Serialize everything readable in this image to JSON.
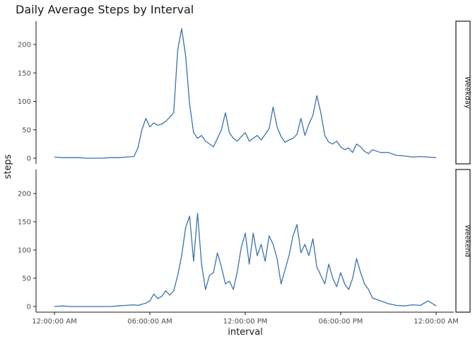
{
  "chart_data": {
    "type": "line",
    "title": "Daily Average Steps by Interval",
    "xlabel": "interval",
    "ylabel": "steps",
    "ylim": [
      0,
      240
    ],
    "yticks": [
      0,
      50,
      100,
      150,
      200
    ],
    "xticks": [
      "12:00:00 AM",
      "06:00:00 AM",
      "12:00:00 PM",
      "06:00:00 PM",
      "12:00:00 AM"
    ],
    "x_hour_range": [
      0,
      24
    ],
    "grid": false,
    "legend": "none",
    "line_color": "#3b72ad",
    "panels": [
      {
        "name": "Weekday",
        "x": [
          0,
          0.5,
          1,
          1.5,
          2,
          2.5,
          3,
          3.5,
          4,
          4.5,
          5,
          5.25,
          5.5,
          5.75,
          6,
          6.25,
          6.5,
          6.75,
          7,
          7.25,
          7.5,
          7.75,
          8,
          8.25,
          8.5,
          8.75,
          9,
          9.25,
          9.5,
          9.75,
          10,
          10.25,
          10.5,
          10.75,
          11,
          11.25,
          11.5,
          11.75,
          12,
          12.25,
          12.5,
          12.75,
          13,
          13.25,
          13.5,
          13.75,
          14,
          14.25,
          14.5,
          14.75,
          15,
          15.25,
          15.5,
          15.75,
          16,
          16.25,
          16.5,
          16.75,
          17,
          17.25,
          17.5,
          17.75,
          18,
          18.25,
          18.5,
          18.75,
          19,
          19.25,
          19.5,
          19.75,
          20,
          20.5,
          21,
          21.5,
          22,
          22.5,
          23,
          23.5,
          24
        ],
        "y": [
          2,
          1,
          1,
          1,
          0,
          0,
          0,
          1,
          1,
          2,
          3,
          18,
          50,
          70,
          55,
          62,
          58,
          60,
          65,
          72,
          80,
          190,
          228,
          180,
          95,
          45,
          35,
          40,
          30,
          25,
          20,
          35,
          50,
          80,
          45,
          35,
          30,
          38,
          45,
          30,
          35,
          40,
          32,
          42,
          52,
          90,
          55,
          38,
          28,
          32,
          35,
          42,
          70,
          40,
          60,
          75,
          110,
          80,
          40,
          28,
          25,
          30,
          20,
          15,
          18,
          10,
          25,
          20,
          12,
          8,
          15,
          10,
          10,
          5,
          4,
          2,
          3,
          2,
          1
        ]
      },
      {
        "name": "Weekend",
        "x": [
          0,
          0.5,
          1,
          1.5,
          2,
          2.5,
          3,
          3.5,
          4,
          4.5,
          5,
          5.25,
          5.5,
          5.75,
          6,
          6.25,
          6.5,
          6.75,
          7,
          7.25,
          7.5,
          7.75,
          8,
          8.25,
          8.5,
          8.75,
          9,
          9.25,
          9.5,
          9.75,
          10,
          10.25,
          10.5,
          10.75,
          11,
          11.25,
          11.5,
          11.75,
          12,
          12.25,
          12.5,
          12.75,
          13,
          13.25,
          13.5,
          13.75,
          14,
          14.25,
          14.5,
          14.75,
          15,
          15.25,
          15.5,
          15.75,
          16,
          16.25,
          16.5,
          16.75,
          17,
          17.25,
          17.5,
          17.75,
          18,
          18.25,
          18.5,
          18.75,
          19,
          19.25,
          19.5,
          19.75,
          20,
          20.5,
          21,
          21.5,
          22,
          22.5,
          23,
          23.5,
          24
        ],
        "y": [
          0,
          1,
          0,
          0,
          0,
          0,
          0,
          0,
          1,
          2,
          3,
          2,
          4,
          6,
          10,
          22,
          14,
          18,
          28,
          20,
          28,
          55,
          90,
          140,
          160,
          80,
          165,
          75,
          30,
          55,
          60,
          95,
          70,
          40,
          45,
          30,
          62,
          105,
          130,
          75,
          130,
          90,
          110,
          80,
          125,
          110,
          85,
          40,
          65,
          90,
          125,
          145,
          95,
          110,
          90,
          120,
          70,
          55,
          40,
          75,
          50,
          35,
          60,
          40,
          30,
          50,
          85,
          60,
          40,
          30,
          15,
          10,
          5,
          2,
          1,
          3,
          2,
          10,
          1
        ]
      }
    ]
  }
}
